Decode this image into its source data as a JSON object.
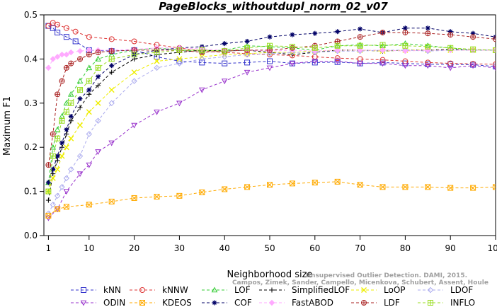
{
  "chart_data": {
    "type": "line",
    "title": "PageBlocks_withoutdupl_norm_02_v07",
    "xlabel": "Neighborhood size",
    "ylabel": "Maximum F1",
    "xlim": [
      0,
      100
    ],
    "ylim": [
      0,
      0.5
    ],
    "xticks": [
      1,
      10,
      20,
      30,
      40,
      50,
      60,
      70,
      80,
      90,
      100
    ],
    "yticks": [
      "0.0",
      "0.1",
      "0.2",
      "0.3",
      "0.4",
      "0.5"
    ],
    "grid": false,
    "legend_position": "bottom",
    "watermark": "Unsupervised Outlier Detection. DAMI, 2015. Campos, Zimek, Sander, Campello, Micenkova, Schubert, Assent, Houle",
    "series": [
      {
        "name": "kNN",
        "color": "#3333cc",
        "marker": "square",
        "dash": "dash",
        "x": [
          1,
          2,
          3,
          5,
          7,
          10,
          15,
          20,
          25,
          30,
          35,
          40,
          45,
          50,
          55,
          60,
          65,
          70,
          75,
          80,
          85,
          90,
          95,
          100
        ],
        "y": [
          0.475,
          0.47,
          0.46,
          0.45,
          0.44,
          0.42,
          0.418,
          0.42,
          0.405,
          0.395,
          0.392,
          0.39,
          0.392,
          0.395,
          0.39,
          0.392,
          0.393,
          0.39,
          0.392,
          0.39,
          0.388,
          0.388,
          0.387,
          0.383
        ]
      },
      {
        "name": "kNNW",
        "color": "#dd3333",
        "marker": "circle",
        "dash": "dash",
        "x": [
          1,
          2,
          3,
          5,
          7,
          10,
          15,
          20,
          25,
          30,
          35,
          40,
          45,
          50,
          55,
          60,
          65,
          70,
          75,
          80,
          85,
          90,
          95,
          100
        ],
        "y": [
          0.475,
          0.482,
          0.478,
          0.47,
          0.462,
          0.45,
          0.445,
          0.44,
          0.432,
          0.425,
          0.418,
          0.415,
          0.412,
          0.41,
          0.408,
          0.405,
          0.402,
          0.4,
          0.398,
          0.395,
          0.392,
          0.39,
          0.389,
          0.388
        ]
      },
      {
        "name": "LOF",
        "color": "#33cc33",
        "marker": "triangle",
        "dash": "dash",
        "x": [
          1,
          2,
          3,
          4,
          5,
          6,
          8,
          10,
          12,
          15,
          20,
          25,
          30,
          35,
          40,
          45,
          50,
          55,
          60,
          65,
          70,
          75,
          80,
          85,
          90,
          95,
          100
        ],
        "y": [
          0.12,
          0.2,
          0.24,
          0.27,
          0.3,
          0.32,
          0.35,
          0.38,
          0.4,
          0.41,
          0.42,
          0.425,
          0.42,
          0.418,
          0.42,
          0.43,
          0.428,
          0.425,
          0.42,
          0.43,
          0.432,
          0.43,
          0.435,
          0.43,
          0.425,
          0.42,
          0.42
        ]
      },
      {
        "name": "SimplifiedLOF",
        "color": "#000000",
        "marker": "plus",
        "dash": "dash",
        "x": [
          1,
          2,
          3,
          4,
          5,
          6,
          8,
          10,
          12,
          15,
          20,
          25,
          30,
          35,
          40,
          45,
          50,
          55,
          60,
          65,
          70,
          75,
          80,
          85,
          90,
          95,
          100
        ],
        "y": [
          0.08,
          0.14,
          0.17,
          0.2,
          0.23,
          0.26,
          0.29,
          0.32,
          0.34,
          0.37,
          0.4,
          0.41,
          0.415,
          0.42,
          0.418,
          0.42,
          0.415,
          0.41,
          0.415,
          0.42,
          0.42,
          0.418,
          0.42,
          0.42,
          0.422,
          0.42,
          0.42
        ]
      },
      {
        "name": "LoOP",
        "color": "#eeee00",
        "marker": "x",
        "dash": "dash",
        "x": [
          1,
          2,
          3,
          4,
          5,
          6,
          8,
          10,
          12,
          15,
          20,
          25,
          30,
          35,
          40,
          45,
          50,
          55,
          60,
          65,
          70,
          75,
          80,
          85,
          90,
          95,
          100
        ],
        "y": [
          0.1,
          0.13,
          0.15,
          0.18,
          0.2,
          0.22,
          0.25,
          0.28,
          0.3,
          0.33,
          0.37,
          0.395,
          0.4,
          0.405,
          0.41,
          0.412,
          0.415,
          0.415,
          0.418,
          0.42,
          0.42,
          0.418,
          0.42,
          0.42,
          0.42,
          0.42,
          0.42
        ]
      },
      {
        "name": "LDOF",
        "color": "#aaaaee",
        "marker": "diamond",
        "dash": "dash",
        "x": [
          1,
          2,
          3,
          4,
          5,
          6,
          8,
          10,
          12,
          15,
          20,
          25,
          30,
          35,
          40,
          45,
          50,
          55,
          60,
          65,
          70,
          75,
          80,
          85,
          90,
          95,
          100
        ],
        "y": [
          0.05,
          0.07,
          0.09,
          0.11,
          0.13,
          0.15,
          0.18,
          0.23,
          0.26,
          0.3,
          0.35,
          0.38,
          0.39,
          0.4,
          0.405,
          0.41,
          0.412,
          0.415,
          0.415,
          0.418,
          0.418,
          0.42,
          0.42,
          0.418,
          0.42,
          0.42,
          0.42
        ]
      },
      {
        "name": "ODIN",
        "color": "#9933cc",
        "marker": "triangle-down",
        "dash": "dash",
        "x": [
          1,
          3,
          5,
          8,
          10,
          12,
          15,
          20,
          25,
          30,
          35,
          40,
          45,
          50,
          55,
          60,
          65,
          70,
          75,
          80,
          85,
          90,
          95,
          100
        ],
        "y": [
          0.04,
          0.06,
          0.1,
          0.14,
          0.16,
          0.19,
          0.21,
          0.25,
          0.28,
          0.3,
          0.33,
          0.35,
          0.37,
          0.38,
          0.39,
          0.395,
          0.395,
          0.39,
          0.39,
          0.385,
          0.385,
          0.38,
          0.385,
          0.38
        ]
      },
      {
        "name": "KDEOS",
        "color": "#ffaa00",
        "marker": "square-x",
        "dash": "dash",
        "x": [
          1,
          3,
          5,
          10,
          15,
          20,
          25,
          30,
          35,
          40,
          45,
          50,
          55,
          60,
          65,
          70,
          75,
          80,
          85,
          90,
          95,
          100
        ],
        "y": [
          0.045,
          0.06,
          0.065,
          0.07,
          0.077,
          0.085,
          0.088,
          0.09,
          0.098,
          0.105,
          0.11,
          0.115,
          0.118,
          0.12,
          0.122,
          0.115,
          0.11,
          0.11,
          0.11,
          0.108,
          0.108,
          0.11
        ]
      },
      {
        "name": "COF",
        "color": "#000066",
        "marker": "star",
        "dash": "dash",
        "x": [
          1,
          2,
          3,
          4,
          5,
          6,
          8,
          10,
          12,
          15,
          20,
          25,
          30,
          35,
          40,
          45,
          50,
          55,
          60,
          65,
          70,
          75,
          80,
          85,
          90,
          95,
          100
        ],
        "y": [
          0.12,
          0.15,
          0.18,
          0.21,
          0.24,
          0.27,
          0.31,
          0.33,
          0.36,
          0.385,
          0.41,
          0.42,
          0.425,
          0.428,
          0.435,
          0.44,
          0.45,
          0.455,
          0.458,
          0.462,
          0.468,
          0.46,
          0.47,
          0.47,
          0.462,
          0.458,
          0.45
        ]
      },
      {
        "name": "FastABOD",
        "color": "#ffaaff",
        "marker": "diamond-filled",
        "dash": "dash",
        "x": [
          1,
          2,
          3,
          4,
          5,
          6,
          8,
          10,
          12,
          15,
          20,
          25,
          30,
          35,
          40,
          45,
          50,
          55,
          60,
          65,
          70,
          75,
          80,
          85,
          90,
          95,
          100
        ],
        "y": [
          0.38,
          0.4,
          0.405,
          0.41,
          0.41,
          0.415,
          0.418,
          0.42,
          0.42,
          0.42,
          0.422,
          0.425,
          0.425,
          0.423,
          0.42,
          0.42,
          0.418,
          0.42,
          0.418,
          0.42,
          0.42,
          0.42,
          0.418,
          0.42,
          0.42,
          0.42,
          0.42
        ]
      },
      {
        "name": "LDF",
        "color": "#aa2222",
        "marker": "circle-plus",
        "dash": "dash",
        "x": [
          1,
          2,
          3,
          4,
          5,
          6,
          8,
          10,
          12,
          15,
          20,
          25,
          30,
          35,
          40,
          45,
          50,
          55,
          60,
          65,
          70,
          75,
          80,
          85,
          90,
          95,
          100
        ],
        "y": [
          0.16,
          0.23,
          0.32,
          0.35,
          0.38,
          0.39,
          0.4,
          0.41,
          0.415,
          0.418,
          0.42,
          0.42,
          0.42,
          0.415,
          0.418,
          0.42,
          0.42,
          0.425,
          0.43,
          0.44,
          0.45,
          0.46,
          0.46,
          0.458,
          0.455,
          0.45,
          0.445
        ]
      },
      {
        "name": "INFLO",
        "color": "#99dd22",
        "marker": "square-plus",
        "dash": "dash",
        "x": [
          1,
          2,
          3,
          4,
          5,
          6,
          8,
          10,
          12,
          15,
          20,
          25,
          30,
          35,
          40,
          45,
          50,
          55,
          60,
          65,
          70,
          75,
          80,
          85,
          90,
          95,
          100
        ],
        "y": [
          0.1,
          0.18,
          0.22,
          0.26,
          0.28,
          0.3,
          0.33,
          0.35,
          0.38,
          0.4,
          0.41,
          0.415,
          0.42,
          0.42,
          0.418,
          0.425,
          0.43,
          0.428,
          0.425,
          0.43,
          0.43,
          0.432,
          0.43,
          0.428,
          0.425,
          0.422,
          0.42
        ]
      }
    ]
  }
}
